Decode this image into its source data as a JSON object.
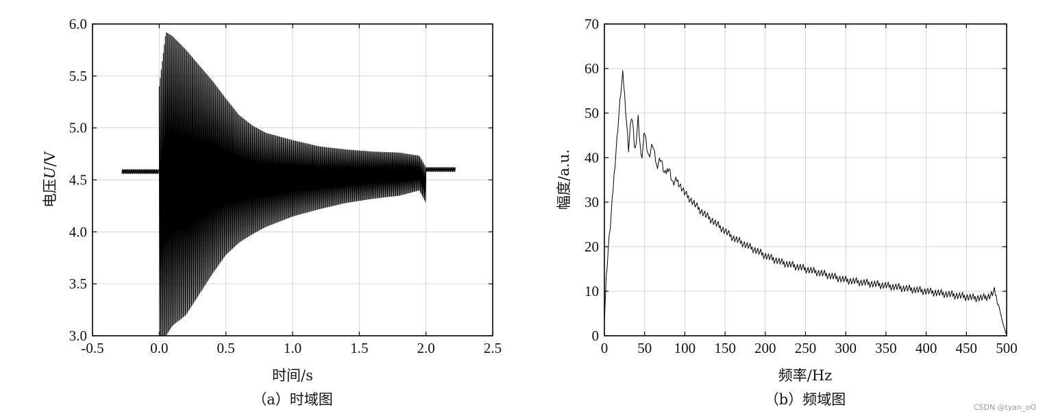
{
  "chart_data": [
    {
      "type": "line",
      "caption": "（a）时域图",
      "xlabel": "时间/s",
      "ylabel_prefix": "电压",
      "ylabel_var": "U",
      "ylabel_suffix": "/V",
      "xlim": [
        -0.5,
        2.5
      ],
      "ylim": [
        3.0,
        6.0
      ],
      "xticks": [
        "-0.5",
        "0.0",
        "0.5",
        "1.0",
        "1.5",
        "2.0",
        "2.5"
      ],
      "yticks": [
        "3.0",
        "3.5",
        "4.0",
        "4.5",
        "5.0",
        "5.5",
        "6.0"
      ],
      "grid": true,
      "series": [
        {
          "line_color": "#000000",
          "baseline": 4.58,
          "idle_before": [
            -0.28,
            0.0
          ],
          "idle_after": [
            2.0,
            2.22
          ],
          "envelope_x": [
            0.0,
            0.05,
            0.1,
            0.2,
            0.3,
            0.4,
            0.5,
            0.6,
            0.7,
            0.8,
            1.0,
            1.2,
            1.4,
            1.6,
            1.8,
            1.95,
            2.0
          ],
          "envelope_upper": [
            5.4,
            5.92,
            5.88,
            5.75,
            5.6,
            5.45,
            5.28,
            5.12,
            5.02,
            4.95,
            4.88,
            4.82,
            4.79,
            4.77,
            4.76,
            4.73,
            4.62
          ],
          "envelope_lower": [
            3.0,
            3.0,
            3.1,
            3.2,
            3.4,
            3.6,
            3.78,
            3.9,
            3.98,
            4.05,
            4.15,
            4.22,
            4.28,
            4.32,
            4.35,
            4.4,
            4.28
          ]
        }
      ]
    },
    {
      "type": "line",
      "caption": "（b）频域图",
      "xlabel": "频率/Hz",
      "ylabel": "幅度/a.u.",
      "xlim": [
        0,
        500
      ],
      "ylim": [
        0,
        70
      ],
      "xticks": [
        "0",
        "50",
        "100",
        "150",
        "200",
        "250",
        "300",
        "350",
        "400",
        "450",
        "500"
      ],
      "yticks": [
        "0",
        "10",
        "20",
        "30",
        "40",
        "50",
        "60",
        "70"
      ],
      "grid": true,
      "series": [
        {
          "line_color": "#000000",
          "x": [
            0,
            2,
            5,
            8,
            12,
            16,
            20,
            23,
            26,
            30,
            34,
            38,
            42,
            46,
            50,
            55,
            60,
            65,
            70,
            75,
            80,
            85,
            90,
            100,
            110,
            120,
            130,
            140,
            150,
            160,
            170,
            180,
            190,
            200,
            220,
            240,
            260,
            280,
            300,
            320,
            340,
            360,
            380,
            400,
            420,
            440,
            460,
            470,
            480,
            485,
            490,
            495,
            500
          ],
          "y": [
            3,
            12,
            20,
            26,
            36,
            45,
            54,
            59,
            52,
            42,
            50,
            41,
            49,
            39,
            46,
            40,
            43,
            38,
            40,
            36,
            38,
            34,
            35,
            32,
            30,
            28,
            26.5,
            25,
            23.5,
            22,
            21,
            20,
            19,
            18,
            16.5,
            15.5,
            14.5,
            13.5,
            12.5,
            12,
            11.5,
            11,
            10.5,
            10,
            9.5,
            9,
            8.5,
            8.5,
            9,
            10,
            7,
            3,
            0
          ]
        }
      ]
    }
  ],
  "watermark": "CSDN @tyan_oO"
}
